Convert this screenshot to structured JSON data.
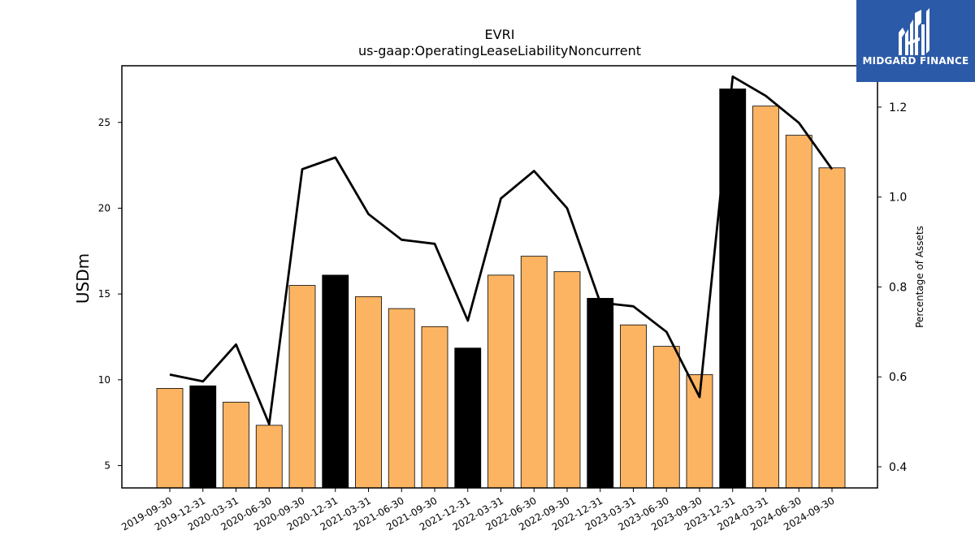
{
  "brand": {
    "name": "MIDGARD FINANCE",
    "bg_color": "#2b5aa8",
    "icon": "midgard-logo-icon"
  },
  "chart_data": {
    "type": "bar",
    "title": "EVRI",
    "subtitle": "us-gaap:OperatingLeaseLiabilityNoncurrent",
    "ylabel": "USDm",
    "y2label": "Percentage of Assets",
    "ylim": [
      3.7,
      28.3
    ],
    "y2lim": [
      0.353,
      1.292
    ],
    "yticks": [
      5,
      10,
      15,
      20,
      25
    ],
    "y2ticks": [
      "0.4",
      "0.6",
      "0.8",
      "1.0",
      "1.2"
    ],
    "categories": [
      "2019-09-30",
      "2019-12-31",
      "2020-03-31",
      "2020-06-30",
      "2020-09-30",
      "2020-12-31",
      "2021-03-31",
      "2021-06-30",
      "2021-09-30",
      "2021-12-31",
      "2022-03-31",
      "2022-06-30",
      "2022-09-30",
      "2022-12-31",
      "2023-03-31",
      "2023-06-30",
      "2023-09-30",
      "2023-12-31",
      "2024-03-31",
      "2024-06-30",
      "2024-09-30"
    ],
    "series": [
      {
        "type": "bar",
        "axis": "left",
        "values": [
          9.5,
          9.65,
          8.7,
          7.35,
          15.5,
          16.1,
          14.85,
          14.15,
          13.1,
          11.85,
          16.1,
          17.2,
          16.3,
          14.75,
          13.2,
          11.95,
          10.3,
          26.95,
          25.95,
          24.25,
          22.35
        ]
      },
      {
        "type": "line",
        "axis": "right",
        "values": [
          0.605,
          0.59,
          0.672,
          0.495,
          1.062,
          1.088,
          0.962,
          0.905,
          0.896,
          0.725,
          0.997,
          1.058,
          0.975,
          0.765,
          0.757,
          0.7,
          0.555,
          1.268,
          1.225,
          1.165,
          1.062
        ]
      }
    ],
    "year_end_color": "#000000",
    "other_color": "#fdb462",
    "line_color": "#000000",
    "grid": false,
    "legend": "none"
  }
}
